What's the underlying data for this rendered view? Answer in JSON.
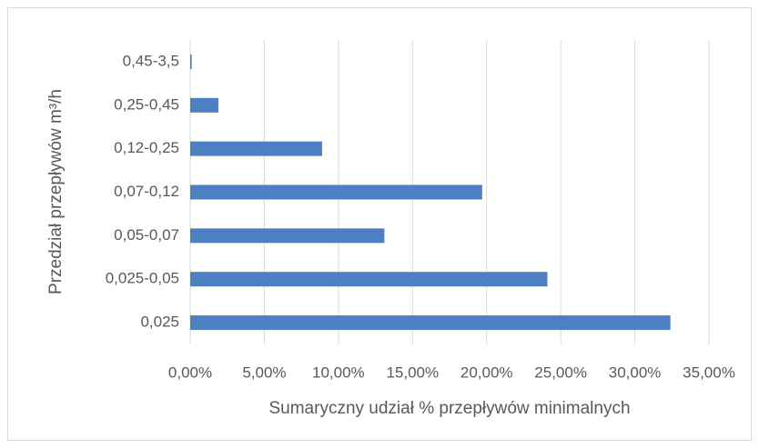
{
  "chart_data": {
    "type": "barh",
    "categories": [
      "0,025",
      "0,025-0,05",
      "0,05-0,07",
      "0,07-0,12",
      "0,12-0,25",
      "0,25-0,45",
      "0,45-3,5"
    ],
    "values": [
      32.4,
      24.1,
      13.1,
      19.7,
      8.9,
      1.9,
      0.1
    ],
    "color": "#4e7fc1",
    "xlim": [
      0,
      35
    ],
    "xticks": [
      {
        "value": 0,
        "label": "0,00%"
      },
      {
        "value": 5,
        "label": "5,00%"
      },
      {
        "value": 10,
        "label": "10,00%"
      },
      {
        "value": 15,
        "label": "15,00%"
      },
      {
        "value": 20,
        "label": "20,00%"
      },
      {
        "value": 25,
        "label": "25,00%"
      },
      {
        "value": 30,
        "label": "30,00%"
      },
      {
        "value": 35,
        "label": "35,00%"
      }
    ],
    "grid": true,
    "xlabel": "Sumaryczny udział % przepływów minimalnych",
    "ylabel": "Przedział przepływów m³/h"
  }
}
